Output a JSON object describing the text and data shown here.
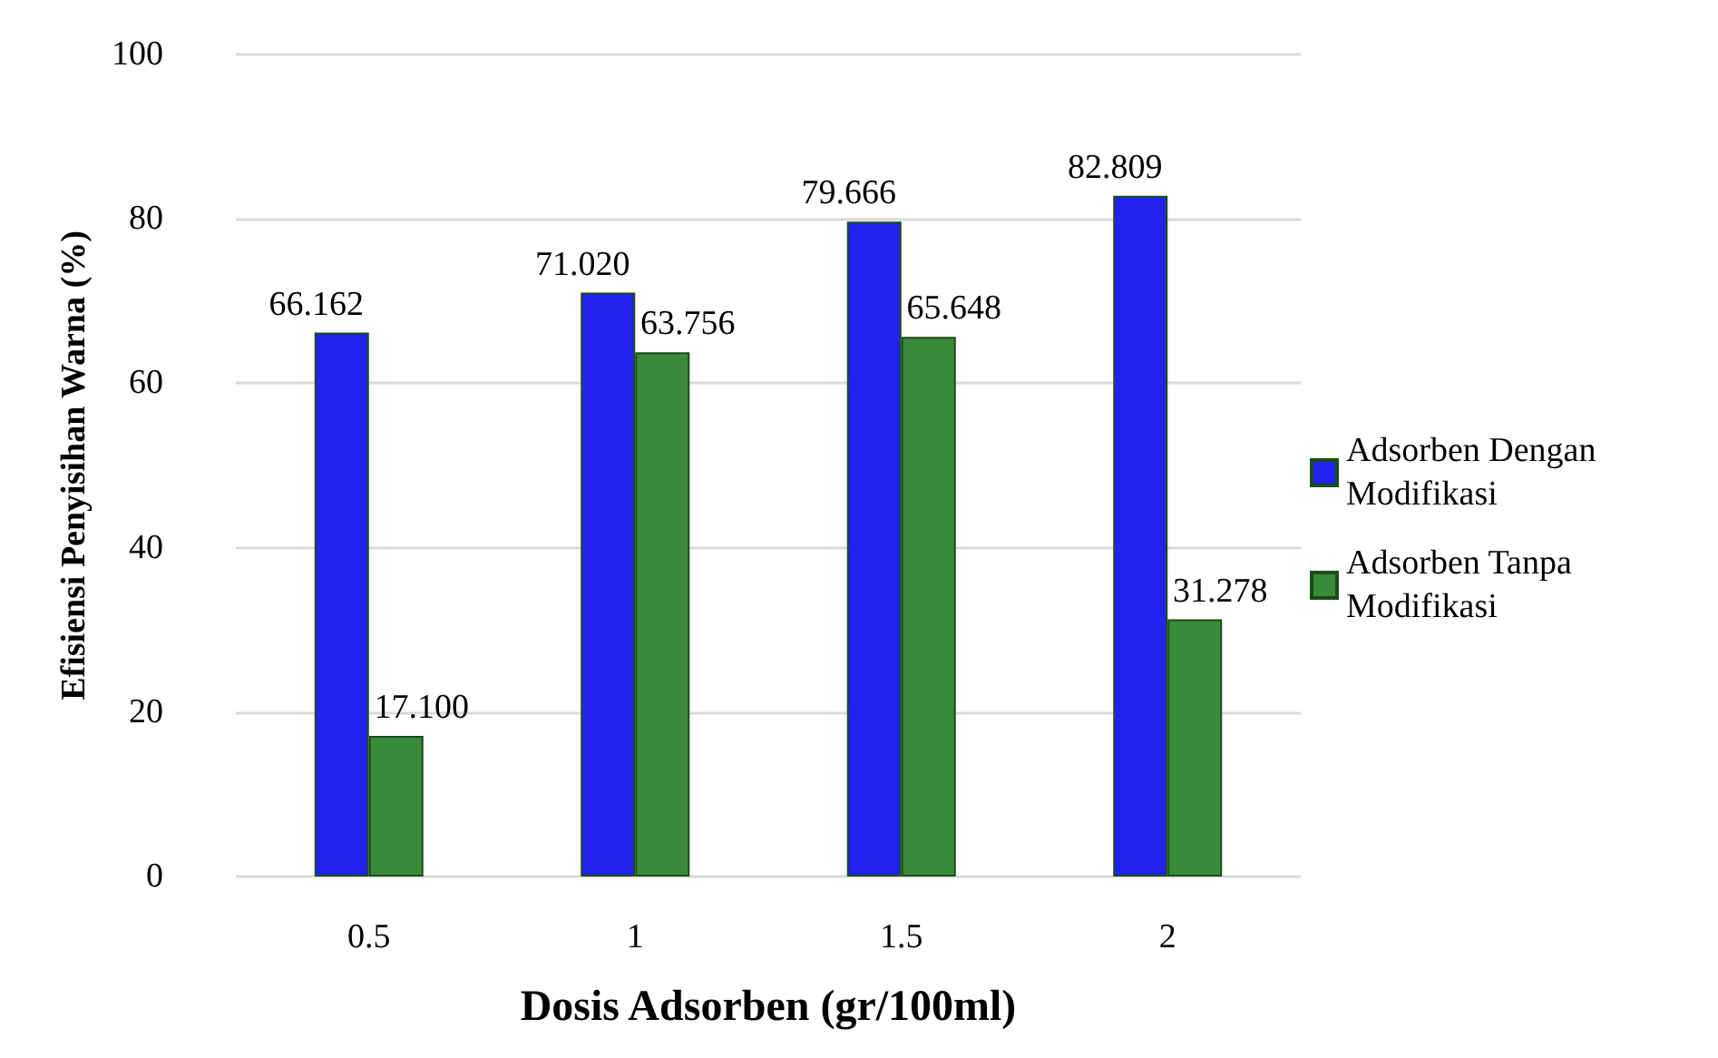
{
  "chart_data": {
    "type": "bar",
    "xlabel": "Dosis Adsorben (gr/100ml)",
    "ylabel": "Efisiensi Penyisihan Warna (%)",
    "categories": [
      "0.5",
      "1",
      "1.5",
      "2"
    ],
    "series": [
      {
        "name": "Adsorben Dengan Modifikasi",
        "color": "#2222ee",
        "values": [
          66.162,
          71.02,
          79.666,
          82.809
        ],
        "value_labels": [
          "66.162",
          "71.020",
          "79.666",
          "82.809"
        ]
      },
      {
        "name": "Adsorben Tanpa Modifikasi",
        "color": "#3a8a3a",
        "values": [
          17.1,
          63.756,
          65.648,
          31.278
        ],
        "value_labels": [
          "17.100",
          "63.756",
          "65.648",
          "31.278"
        ]
      }
    ],
    "ylim": [
      0,
      100
    ],
    "yticks": [
      0,
      20,
      40,
      60,
      80,
      100
    ],
    "grid": "y",
    "legend": "right"
  }
}
